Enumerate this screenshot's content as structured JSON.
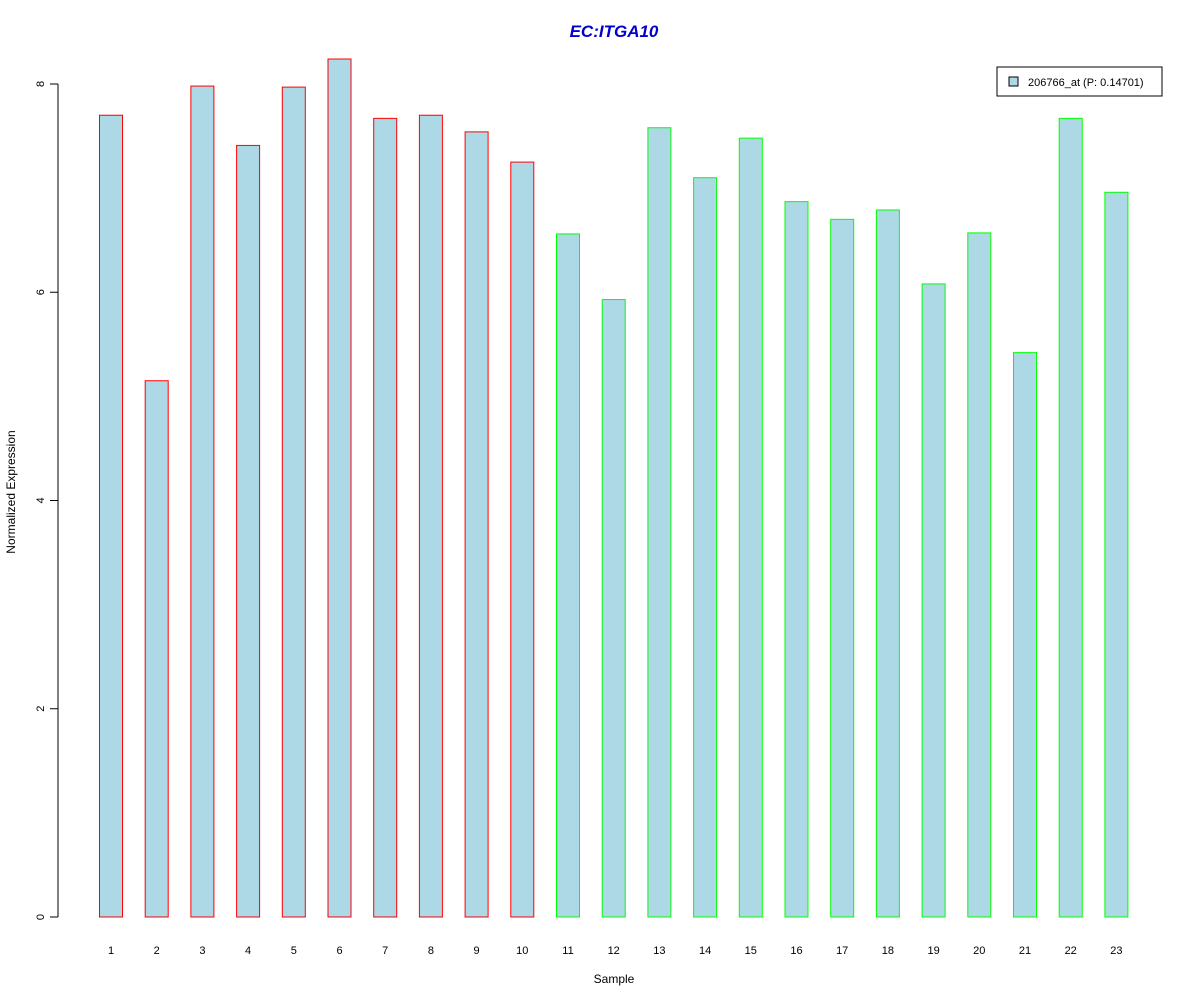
{
  "chart_data": {
    "type": "bar",
    "title": "EC:ITGA10",
    "xlabel": "Sample",
    "ylabel": "Normalized Expression",
    "categories": [
      "1",
      "2",
      "3",
      "4",
      "5",
      "6",
      "7",
      "8",
      "9",
      "10",
      "11",
      "12",
      "13",
      "14",
      "15",
      "16",
      "17",
      "18",
      "19",
      "20",
      "21",
      "22",
      "23"
    ],
    "series": [
      {
        "name": "206766_at (P: 0.14701)",
        "values": [
          7.7,
          5.15,
          7.98,
          7.41,
          7.97,
          8.24,
          7.67,
          7.7,
          7.54,
          7.25,
          6.56,
          5.93,
          7.58,
          7.1,
          7.48,
          6.87,
          6.7,
          6.79,
          6.08,
          6.57,
          5.42,
          7.67,
          6.96
        ]
      }
    ],
    "groups": [
      {
        "samples": "1-10",
        "outline_color": "#ff0000"
      },
      {
        "samples": "11-23",
        "outline_color": "#00ff00"
      }
    ],
    "ylim": [
      0,
      8.24
    ],
    "yticks": [
      0,
      2,
      4,
      6,
      8
    ],
    "fill_color": "#add8e6",
    "title_color": "#0000cc",
    "legend_position": "top-right",
    "grid": false
  }
}
